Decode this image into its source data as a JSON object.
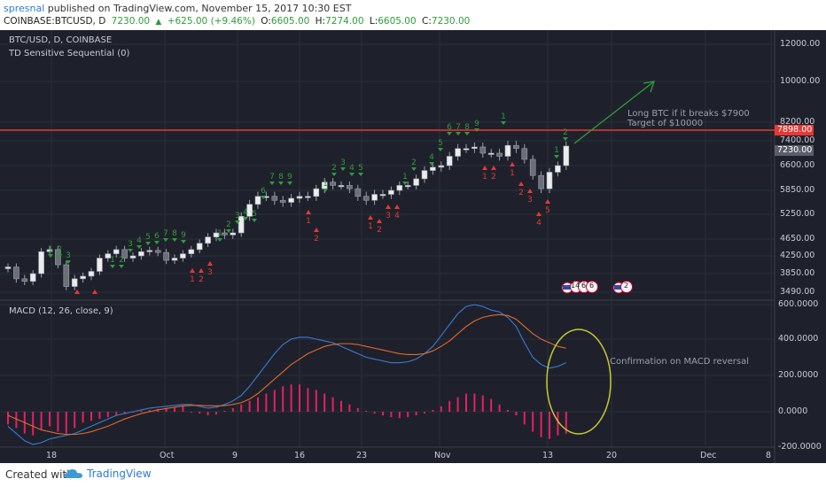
{
  "header": {
    "author": "spresnal",
    "published_text": " published on TradingView.com, November 15, 2017 10:30 EST",
    "symbol": "COINBASE:BTCUSD, D",
    "last": "7230.00",
    "change": "+625.00 (+9.46%)",
    "o_label": "O:",
    "o": "6605.00",
    "h_label": "H:",
    "h": "7274.00",
    "l_label": "L:",
    "l": "6605.00",
    "c_label": "C:",
    "c": "7230.00"
  },
  "price_pane": {
    "symbol_label": "BTC/USD, D, COINBASE",
    "indicator_label": "TD Sensitive Sequential (0)",
    "price_axis": [
      "12000.00",
      "10000.00",
      "8200.00",
      "7400.00",
      "6600.00",
      "5850.00",
      "5250.00",
      "4650.00",
      "4250.00",
      "3850.00",
      "3490.00"
    ],
    "resistance_label": "7898.00",
    "last_price_label": "7230.00",
    "note_line1": "Long BTC if it breaks $7900",
    "note_line2": "Target of $10000",
    "event_badges": [
      "14",
      "6",
      "6",
      "2"
    ],
    "colors": {
      "resistance": "#e53935",
      "arrow": "#2e9d3a",
      "up_count": "#2e9d3a",
      "down_count": "#e53935"
    }
  },
  "macd_pane": {
    "label": "MACD (12, 26, close, 9)",
    "axis": [
      "600.0000",
      "400.0000",
      "200.0000",
      "0.0000",
      "-200.0000"
    ],
    "note": "Confirmation on MACD reversal",
    "colors": {
      "macd_line": "#3a7bd5",
      "signal_line": "#e06a2c",
      "histogram": "#e91e63",
      "ellipse": "#c8c832"
    }
  },
  "time_axis": [
    "18",
    "Oct",
    "9",
    "16",
    "23",
    "Nov",
    "13",
    "20",
    "Dec",
    "8"
  ],
  "footer": {
    "created_with": "Created with",
    "brand": "TradingView"
  },
  "chart_data": {
    "type": "candlestick",
    "symbol": "BTC/USD",
    "interval": "D",
    "exchange": "COINBASE",
    "ylim": [
      3490,
      12000
    ],
    "resistance": 7898,
    "approx_closes": [
      4000,
      3750,
      3700,
      3850,
      4350,
      4400,
      4050,
      3600,
      3750,
      3800,
      3900,
      4200,
      4300,
      4400,
      4200,
      4250,
      4350,
      4380,
      4330,
      4150,
      4200,
      4300,
      4400,
      4550,
      4700,
      4800,
      4750,
      4800,
      5200,
      5500,
      5700,
      5700,
      5600,
      5550,
      5650,
      5700,
      5700,
      5900,
      6100,
      6000,
      6000,
      5900,
      5700,
      5600,
      5750,
      5750,
      5850,
      6000,
      6000,
      6200,
      6450,
      6550,
      6600,
      6900,
      7150,
      7150,
      7200,
      7000,
      7000,
      6900,
      7250,
      7150,
      6800,
      6300,
      5900,
      6400,
      6600,
      7230
    ],
    "macd_ylim": [
      -200,
      600
    ],
    "annotations": [
      "Long BTC if it breaks $7900",
      "Target of $10000",
      "Confirmation on MACD reversal"
    ]
  }
}
